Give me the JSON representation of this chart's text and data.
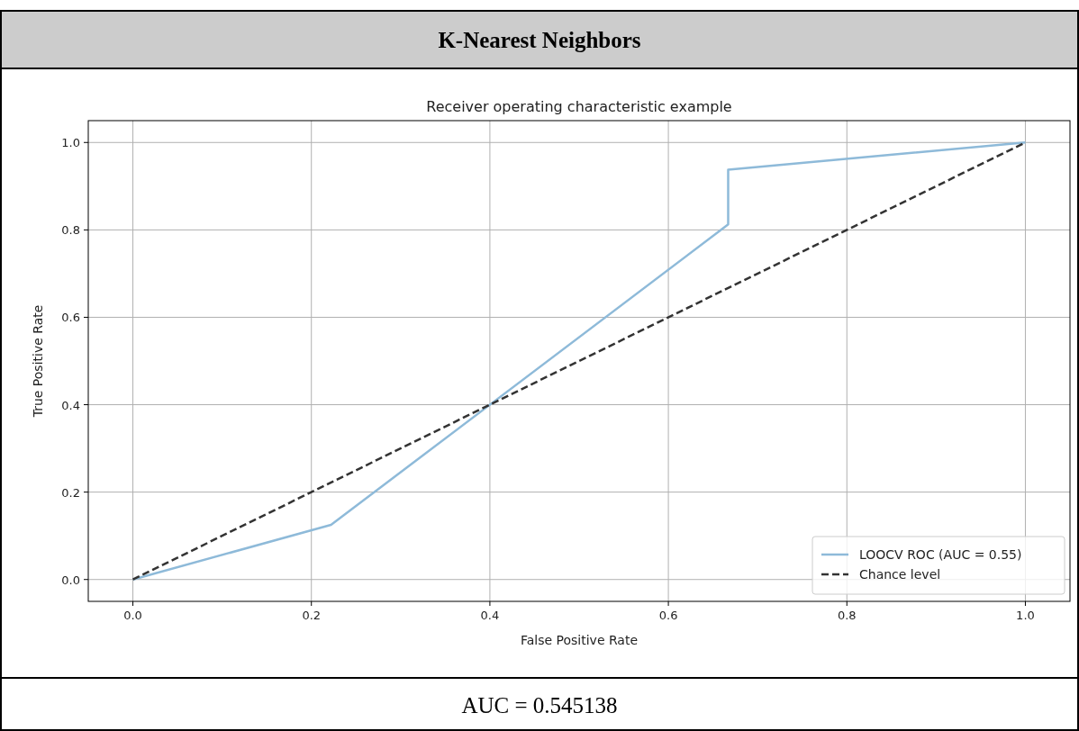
{
  "chart_data": {
    "type": "line",
    "title": "K-Nearest Neighbors",
    "subtitle": "Receiver operating characteristic example",
    "xlabel": "False Positive Rate",
    "ylabel": "True Positive Rate",
    "annotations": [
      "AUC = 0.545138"
    ],
    "xlim": [
      -0.05,
      1.05
    ],
    "ylim": [
      -0.05,
      1.05
    ],
    "xticks": [
      {
        "value": 0,
        "label": "0.0"
      },
      {
        "value": 0.2,
        "label": "0.2"
      },
      {
        "value": 0.4,
        "label": "0.4"
      },
      {
        "value": 0.6,
        "label": "0.6"
      },
      {
        "value": 0.8,
        "label": "0.8"
      },
      {
        "value": 1,
        "label": "1.0"
      }
    ],
    "yticks": [
      {
        "value": 0,
        "label": "0.0"
      },
      {
        "value": 0.2,
        "label": "0.2"
      },
      {
        "value": 0.4,
        "label": "0.4"
      },
      {
        "value": 0.6,
        "label": "0.6"
      },
      {
        "value": 0.8,
        "label": "0.8"
      },
      {
        "value": 1,
        "label": "1.0"
      }
    ],
    "grid": true,
    "legend": "bottom right",
    "marker": "none",
    "series": [
      {
        "name": "LOOCV ROC (AUC = 0.55)",
        "color": "#8ebad9",
        "line_style": "solid",
        "x": [
          0,
          0.222,
          0.667,
          0.667,
          1
        ],
        "values": [
          0,
          0.125,
          0.8125,
          0.9375,
          1
        ]
      },
      {
        "name": "Chance level",
        "color": "#333333",
        "line_style": "dashed",
        "x": [
          0,
          1
        ],
        "values": [
          0,
          1
        ]
      }
    ]
  }
}
